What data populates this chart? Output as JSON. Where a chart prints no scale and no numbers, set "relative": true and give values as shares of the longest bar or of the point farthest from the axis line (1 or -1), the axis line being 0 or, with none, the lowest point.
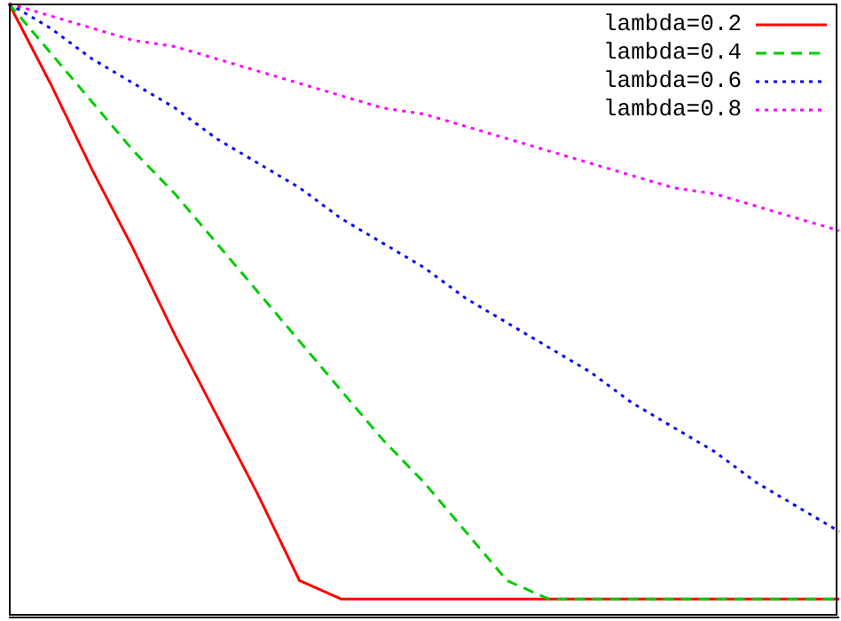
{
  "chart_data": {
    "type": "line",
    "relative": true,
    "legend": "top right",
    "grid": false,
    "marker": "none",
    "categories": [
      null,
      null,
      null,
      null,
      null,
      null,
      null,
      null,
      null,
      null,
      null,
      null,
      null,
      null,
      null,
      null,
      null,
      null,
      null,
      null,
      null
    ],
    "series": [
      {
        "name": "lambda=0.2",
        "color": "#ff0000",
        "line_style": "solid",
        "values": [
          1,
          0.87,
          0.73,
          0.6,
          0.46,
          0.33,
          0.2,
          0.06,
          0.03,
          0.03,
          0.03,
          0.03,
          0.03,
          0.03,
          0.03,
          0.03,
          0.03,
          0.03,
          0.03,
          0.03,
          0.03
        ]
      },
      {
        "name": "lambda=0.4",
        "color": "#00cc00",
        "line_style": "dashed",
        "values": [
          1,
          0.92,
          0.84,
          0.76,
          0.69,
          0.61,
          0.53,
          0.45,
          0.37,
          0.29,
          0.22,
          0.14,
          0.06,
          0.03,
          0.03,
          0.03,
          0.03,
          0.03,
          0.03,
          0.03,
          0.03
        ]
      },
      {
        "name": "lambda=0.6",
        "color": "#0000ff",
        "line_style": "dotted",
        "values": [
          1,
          0.96,
          0.91,
          0.87,
          0.83,
          0.78,
          0.74,
          0.7,
          0.65,
          0.61,
          0.57,
          0.52,
          0.48,
          0.44,
          0.4,
          0.35,
          0.31,
          0.27,
          0.22,
          0.18,
          0.14
        ]
      },
      {
        "name": "lambda=0.8",
        "color": "#ff00ff",
        "line_style": "dotted",
        "values": [
          1,
          0.98,
          0.96,
          0.94,
          0.93,
          0.91,
          0.89,
          0.87,
          0.85,
          0.83,
          0.82,
          0.8,
          0.78,
          0.76,
          0.74,
          0.72,
          0.7,
          0.69,
          0.67,
          0.65,
          0.63
        ]
      }
    ]
  }
}
